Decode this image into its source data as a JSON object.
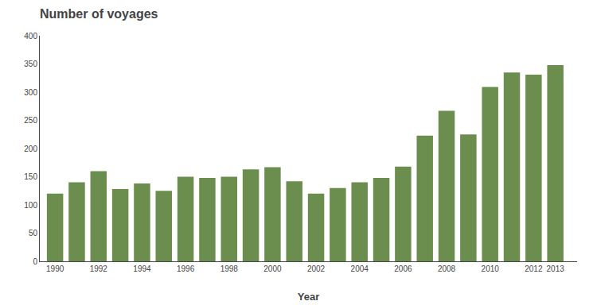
{
  "chart_data": {
    "type": "bar",
    "title": "Number of voyages",
    "xlabel": "Year",
    "x": [
      1990,
      1991,
      1992,
      1993,
      1994,
      1995,
      1996,
      1997,
      1998,
      1999,
      2000,
      2001,
      2002,
      2003,
      2004,
      2005,
      2006,
      2007,
      2008,
      2009,
      2010,
      2011,
      2012,
      2013
    ],
    "values": [
      120,
      140,
      160,
      128,
      138,
      125,
      150,
      148,
      150,
      163,
      167,
      142,
      120,
      130,
      140,
      148,
      168,
      223,
      267,
      225,
      309,
      335,
      331,
      348
    ],
    "color": "#6b8e4e",
    "xlim": [
      1989.3,
      2014
    ],
    "xticks": [
      1990,
      1992,
      1994,
      1996,
      1998,
      2000,
      2002,
      2004,
      2006,
      2008,
      2010,
      2012,
      2013
    ],
    "ylim": [
      0,
      400
    ],
    "yticks": [
      0,
      50,
      100,
      150,
      200,
      250,
      300,
      350,
      400
    ],
    "grid": false
  }
}
